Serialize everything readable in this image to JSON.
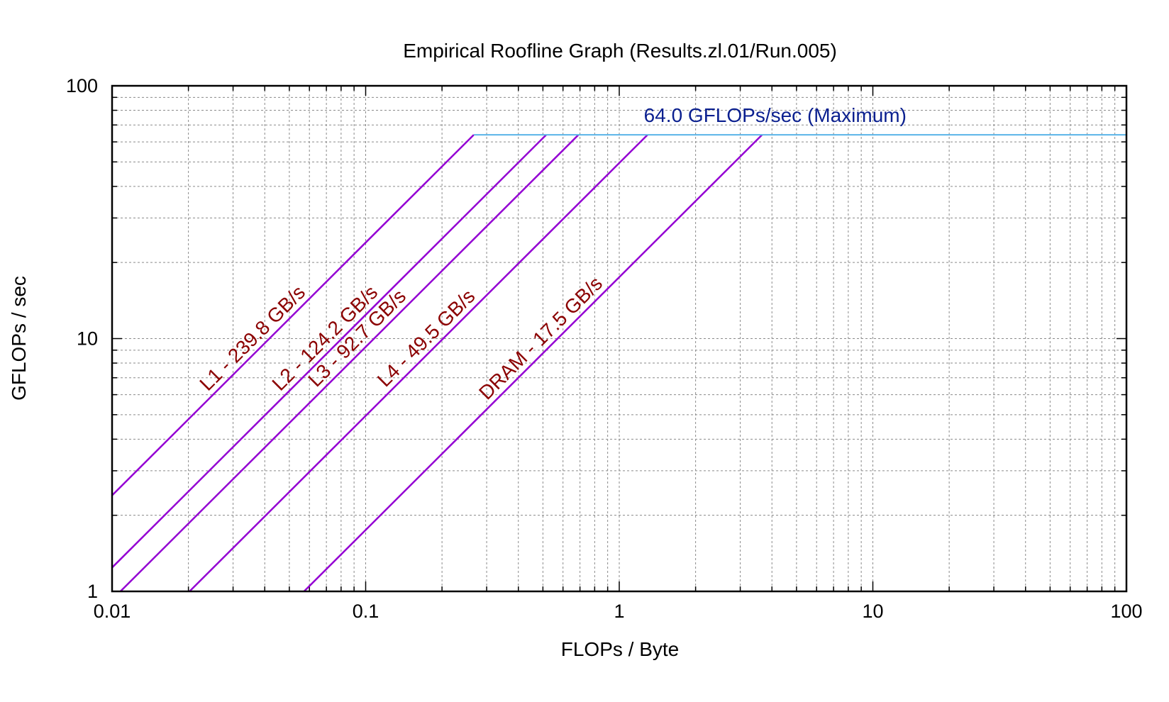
{
  "chart_data": {
    "type": "line",
    "title": "Empirical Roofline Graph (Results.zl.01/Run.005)",
    "xlabel": "FLOPs / Byte",
    "ylabel": "GFLOPs / sec",
    "xscale": "log",
    "yscale": "log",
    "xlim": [
      0.01,
      100
    ],
    "ylim": [
      1,
      100
    ],
    "x_ticks": [
      "0.01",
      "0.1",
      "1",
      "10",
      "100"
    ],
    "y_ticks": [
      "1",
      "10",
      "100"
    ],
    "grid": true,
    "compute_ceiling": {
      "label": "64.0 GFLOPs/sec (Maximum)",
      "gflops": 64.0,
      "color": "#5ab4e8",
      "label_color": "#0a1f8f"
    },
    "bandwidth_ceilings": [
      {
        "name": "L1",
        "label": "L1 - 239.8 GB/s",
        "bandwidth": 239.8
      },
      {
        "name": "L2",
        "label": "L2 - 124.2 GB/s",
        "bandwidth": 124.2
      },
      {
        "name": "L3",
        "label": "L3 - 92.7 GB/s",
        "bandwidth": 92.7
      },
      {
        "name": "L4",
        "label": "L4 - 49.5 GB/s",
        "bandwidth": 49.5
      },
      {
        "name": "DRAM",
        "label": "DRAM - 17.5 GB/s",
        "bandwidth": 17.5
      }
    ],
    "bandwidth_color": "#9400d3",
    "bandwidth_label_color": "#8b0000"
  }
}
